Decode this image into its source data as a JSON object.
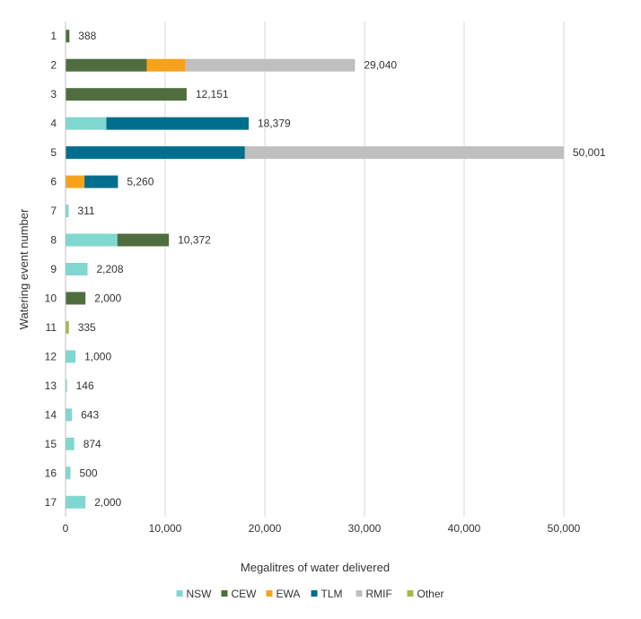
{
  "chart_data": {
    "type": "bar",
    "orientation": "horizontal",
    "stacked": true,
    "title": "",
    "xlabel": "Megalitres of water delivered",
    "ylabel": "Watering event number",
    "xlim": [
      0,
      50000
    ],
    "x_ticks": [
      0,
      10000,
      20000,
      30000,
      40000,
      50000
    ],
    "x_tick_labels": [
      "0",
      "10,000",
      "20,000",
      "30,000",
      "40,000",
      "50,000"
    ],
    "grid": true,
    "legend_position": "bottom",
    "categories": [
      "1",
      "2",
      "3",
      "4",
      "5",
      "6",
      "7",
      "8",
      "9",
      "10",
      "11",
      "12",
      "13",
      "14",
      "15",
      "16",
      "17"
    ],
    "series": [
      {
        "name": "NSW",
        "color": "#7fd8cf",
        "values": [
          0,
          0,
          0,
          4100,
          0,
          0,
          311,
          5200,
          2208,
          0,
          0,
          1000,
          146,
          643,
          874,
          500,
          2000
        ]
      },
      {
        "name": "CEW",
        "color": "#4f6d3f",
        "values": [
          388,
          8150,
          12151,
          0,
          0,
          0,
          0,
          5172,
          0,
          2000,
          0,
          0,
          0,
          0,
          0,
          0,
          0
        ]
      },
      {
        "name": "EWA",
        "color": "#f7a21b",
        "values": [
          0,
          3900,
          0,
          0,
          0,
          1900,
          0,
          0,
          0,
          0,
          0,
          0,
          0,
          0,
          0,
          0,
          0
        ]
      },
      {
        "name": "TLM",
        "color": "#006e8c",
        "values": [
          0,
          0,
          0,
          14279,
          18000,
          3360,
          0,
          0,
          0,
          0,
          0,
          0,
          0,
          0,
          0,
          0,
          0
        ]
      },
      {
        "name": "RMIF",
        "color": "#bfbfbf",
        "values": [
          0,
          16990,
          0,
          0,
          32001,
          0,
          0,
          0,
          0,
          0,
          0,
          0,
          0,
          0,
          0,
          0,
          0
        ]
      },
      {
        "name": "Other",
        "color": "#a8b842",
        "values": [
          0,
          0,
          0,
          0,
          0,
          0,
          0,
          0,
          0,
          0,
          335,
          0,
          0,
          0,
          0,
          0,
          0
        ]
      }
    ],
    "totals": [
      388,
      29040,
      12151,
      18379,
      50001,
      5260,
      311,
      10372,
      2208,
      2000,
      335,
      1000,
      146,
      643,
      874,
      500,
      2000
    ],
    "total_labels": [
      "388",
      "29,040",
      "12,151",
      "18,379",
      "50,001",
      "5,260",
      "311",
      "10,372",
      "2,208",
      "2,000",
      "335",
      "1,000",
      "146",
      "643",
      "874",
      "500",
      "2,000"
    ]
  }
}
